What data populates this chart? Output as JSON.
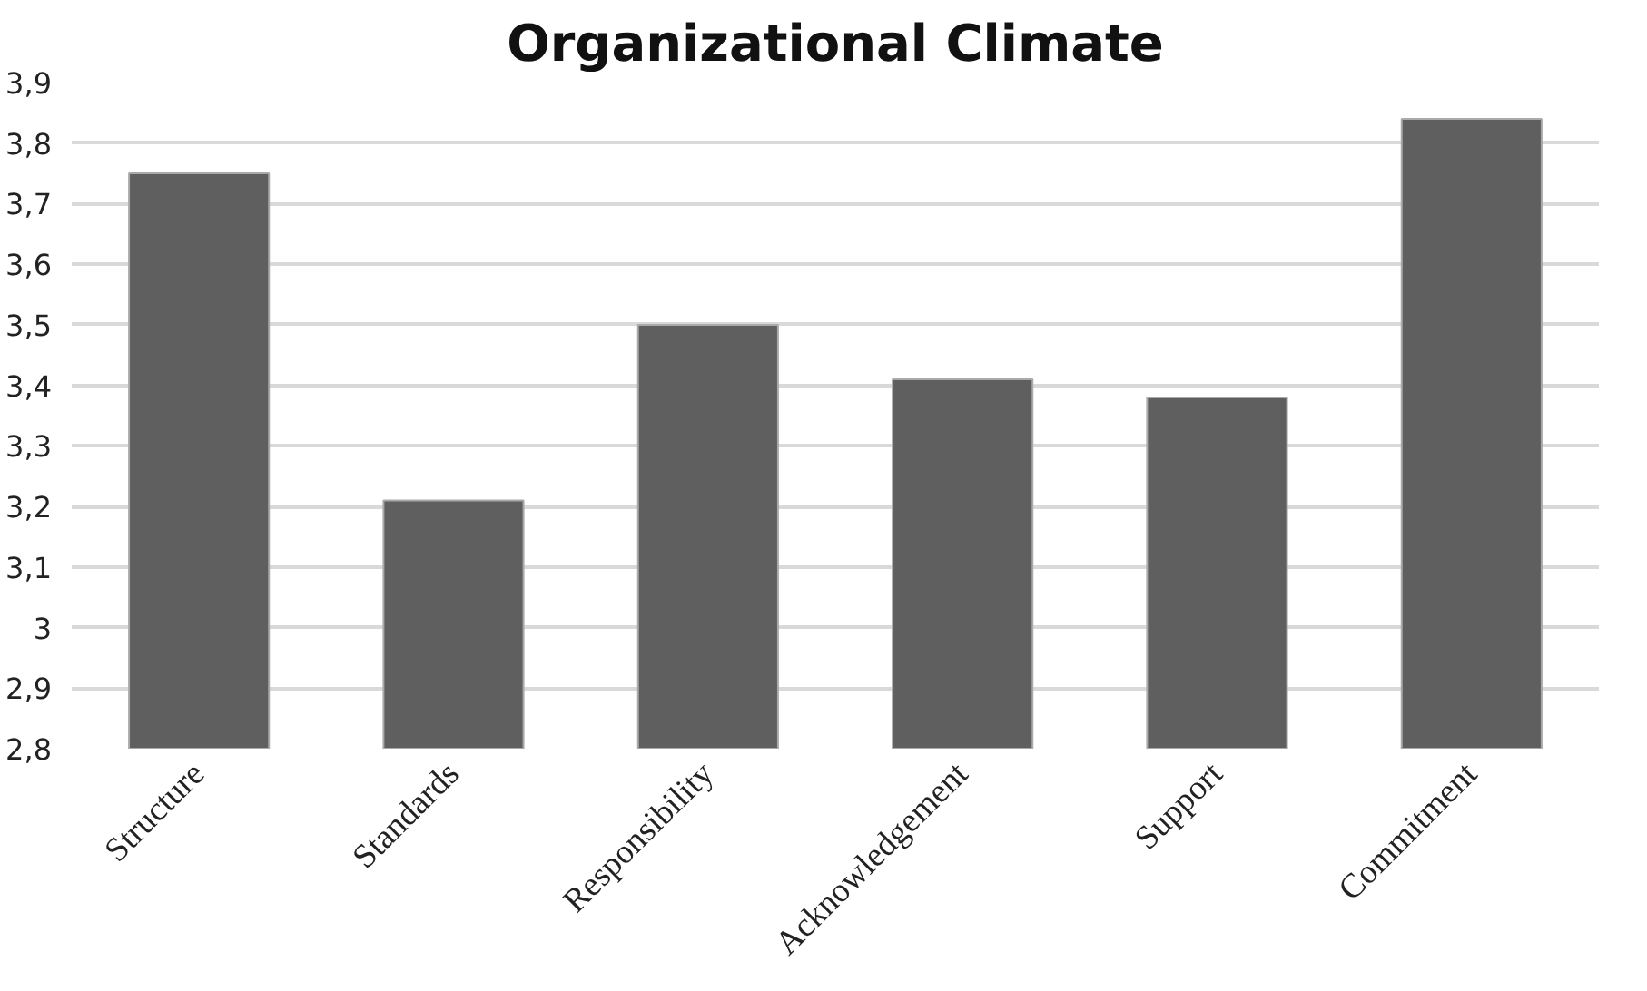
{
  "chart_data": {
    "type": "bar",
    "title": "Organizational Climate",
    "categories": [
      "Structure",
      "Standards",
      "Responsibility",
      "Acknowledgement",
      "Support",
      "Commitment"
    ],
    "values": [
      3.75,
      3.21,
      3.5,
      3.41,
      3.38,
      3.84
    ],
    "color": "#5f5f5f",
    "ylim": [
      2.8,
      3.9
    ],
    "yticks": [
      {
        "value": 2.8,
        "label": "2,8"
      },
      {
        "value": 2.9,
        "label": "2,9"
      },
      3,
      {
        "value": 3.1,
        "label": "3,1"
      },
      {
        "value": 3.2,
        "label": "3,2"
      },
      {
        "value": 3.3,
        "label": "3,3"
      },
      {
        "value": 3.4,
        "label": "3,4"
      },
      {
        "value": 3.5,
        "label": "3,5"
      },
      {
        "value": 3.6,
        "label": "3,6"
      },
      {
        "value": 3.7,
        "label": "3,7"
      },
      {
        "value": 3.8,
        "label": "3,8"
      },
      {
        "value": 3.9,
        "label": "3,9"
      }
    ],
    "grid": "y"
  }
}
